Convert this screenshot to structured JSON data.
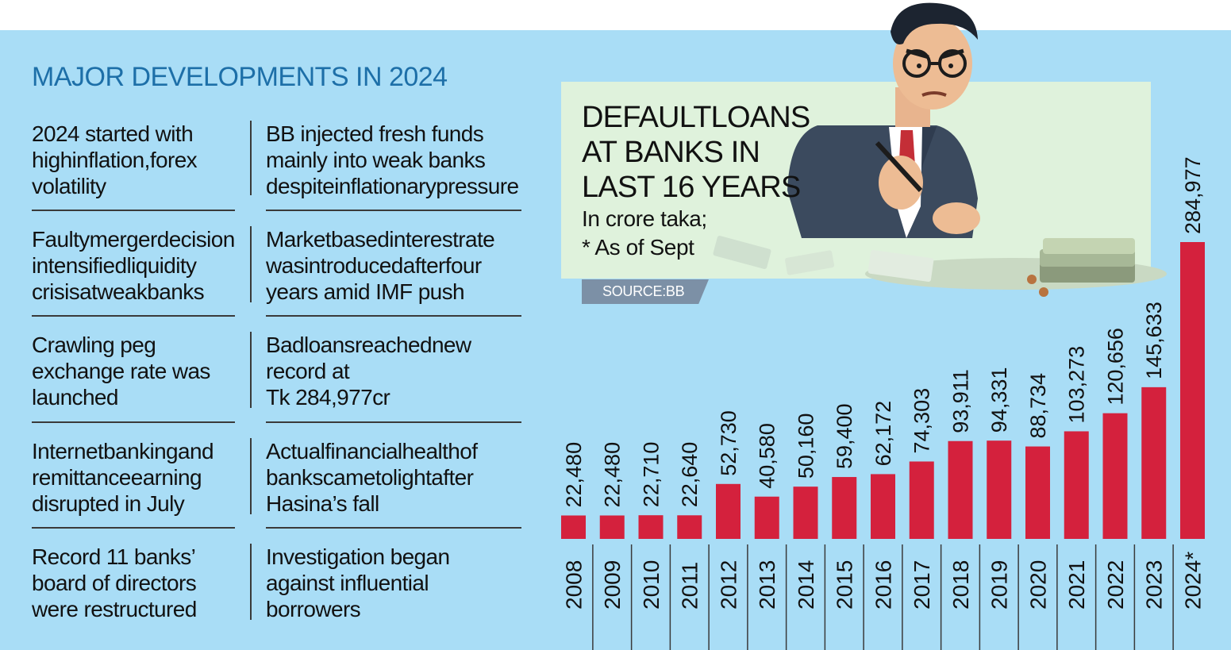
{
  "heading": "MAJOR DEVELOPMENTS IN 2024",
  "developments": [
    {
      "left": "2024 started with\nhighinflation,forex\nvolatility",
      "right": "BB injected fresh funds\nmainly into weak banks\ndespiteinflationarypressure"
    },
    {
      "left": "Faultymergerdecision\nintensifiedliquidity\ncrisisatweakbanks",
      "right": "Marketbasedinterestrate\nwasintroducedafterfour\nyears amid IMF push"
    },
    {
      "left": "Crawling peg\nexchange rate was\nlaunched",
      "right": "Badloansreachednew\nrecord at\nTk 284,977cr"
    },
    {
      "left": "Internetbankingand\nremittanceearning\ndisrupted in July",
      "right": "Actualfinancialhealthof\nbankscametolightafter\nHasina’s fall"
    },
    {
      "left": "Record 11 banks’\nboard of directors\nwere restructured",
      "right": "Investigation began\nagainst influential\nborrowers"
    }
  ],
  "chart_data": {
    "type": "bar",
    "title": "DEFAULTLOANS\nAT BANKS IN\nLAST 16 YEARS",
    "subtitle": "In crore taka;\n* As of Sept",
    "source": "SOURCE:BB",
    "categories": [
      "2008",
      "2009",
      "2010",
      "2011",
      "2012",
      "2013",
      "2014",
      "2015",
      "2016",
      "2017",
      "2018",
      "2019",
      "2020",
      "2021",
      "2022",
      "2023",
      "2024*"
    ],
    "values": [
      22480,
      22480,
      22710,
      22640,
      52730,
      40580,
      50160,
      59400,
      62172,
      74303,
      93911,
      94331,
      88734,
      103273,
      120656,
      145633,
      284977
    ],
    "value_labels": [
      "22,480",
      "22,480",
      "22,710",
      "22,640",
      "52,730",
      "40,580",
      "50,160",
      "59,400",
      "62,172",
      "74,303",
      "93,911",
      "94,331",
      "88,734",
      "103,273",
      "120,656",
      "145,633",
      "284,977"
    ],
    "bar_color": "#d4213d",
    "grid": false,
    "legend": "none",
    "orientation": "vertical",
    "value_label_rotation": "vertical"
  },
  "colors": {
    "background": "#a9ddf6",
    "heading": "#1d6fa8",
    "title_box": "#dff2dc",
    "source_tag": "#7c90a6",
    "bar": "#d4213d"
  },
  "illustration": {
    "icon": "angry-businessman-with-money-icon"
  }
}
